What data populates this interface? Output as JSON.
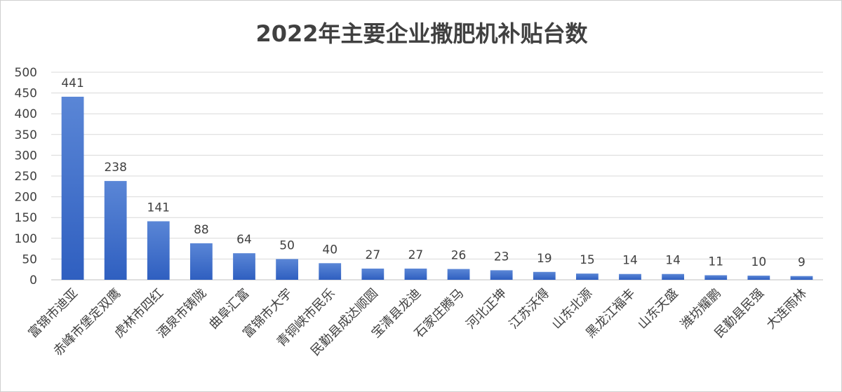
{
  "chart_data": {
    "type": "bar",
    "title": "2022年主要企业撒肥机补贴台数",
    "xlabel": "",
    "ylabel": "",
    "ylim": [
      0,
      500
    ],
    "yticks": [
      0,
      50,
      100,
      150,
      200,
      250,
      300,
      350,
      400,
      450,
      500
    ],
    "categories": [
      "富锦市迪亚",
      "赤峰市堡定双鹰",
      "虎林市四红",
      "酒泉市铸陇",
      "曲阜汇富",
      "富锦市大宇",
      "青铜峡市民乐",
      "民勤县成达顺圆",
      "宝清县龙迪",
      "石家庄腾马",
      "河北正坤",
      "江苏沃得",
      "山东北源",
      "黑龙江福丰",
      "山东天盛",
      "潍坊耀鹏",
      "民勤县民强",
      "大连雨林"
    ],
    "values": [
      441,
      238,
      141,
      88,
      64,
      50,
      40,
      27,
      27,
      26,
      23,
      19,
      15,
      14,
      14,
      11,
      10,
      9
    ],
    "grid": true,
    "legend": "none",
    "colors": {
      "bar_top": "#5a86d6",
      "bar_bottom": "#2f5fc0",
      "grid": "#d9d9d9",
      "text": "#404040"
    }
  }
}
